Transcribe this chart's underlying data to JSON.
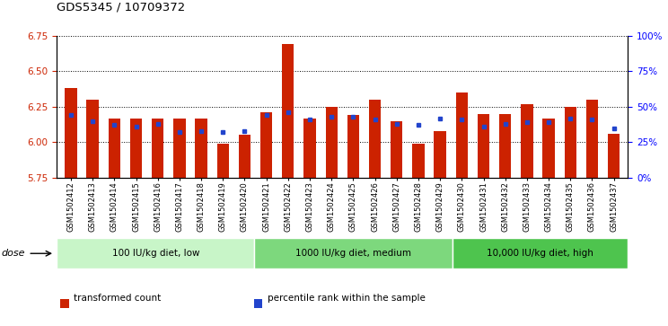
{
  "title": "GDS5345 / 10709372",
  "samples": [
    "GSM1502412",
    "GSM1502413",
    "GSM1502414",
    "GSM1502415",
    "GSM1502416",
    "GSM1502417",
    "GSM1502418",
    "GSM1502419",
    "GSM1502420",
    "GSM1502421",
    "GSM1502422",
    "GSM1502423",
    "GSM1502424",
    "GSM1502425",
    "GSM1502426",
    "GSM1502427",
    "GSM1502428",
    "GSM1502429",
    "GSM1502430",
    "GSM1502431",
    "GSM1502432",
    "GSM1502433",
    "GSM1502434",
    "GSM1502435",
    "GSM1502436",
    "GSM1502437"
  ],
  "red_values": [
    6.38,
    6.3,
    6.17,
    6.17,
    6.17,
    6.17,
    6.17,
    5.99,
    6.05,
    6.21,
    6.69,
    6.17,
    6.25,
    6.19,
    6.3,
    6.15,
    5.99,
    6.08,
    6.35,
    6.2,
    6.2,
    6.27,
    6.17,
    6.25,
    6.3,
    6.06
  ],
  "blue_values": [
    44,
    40,
    37,
    36,
    38,
    32,
    33,
    32,
    33,
    44,
    46,
    41,
    43,
    43,
    41,
    38,
    37,
    42,
    41,
    36,
    38,
    39,
    39,
    42,
    41,
    35
  ],
  "groups": [
    {
      "label": "100 IU/kg diet, low",
      "start": 0,
      "end": 9
    },
    {
      "label": "1000 IU/kg diet, medium",
      "start": 9,
      "end": 18
    },
    {
      "label": "10,000 IU/kg diet, high",
      "start": 18,
      "end": 26
    }
  ],
  "group_colors": [
    "#C8F5C8",
    "#7DD87D",
    "#4EC44E"
  ],
  "ylim_left": [
    5.75,
    6.75
  ],
  "ylim_right": [
    0,
    100
  ],
  "y_ticks_left": [
    5.75,
    6.0,
    6.25,
    6.5,
    6.75
  ],
  "y_ticks_right": [
    0,
    25,
    50,
    75,
    100
  ],
  "bar_color": "#CC2200",
  "dot_color": "#2244CC",
  "base": 5.75,
  "bg_color": "#E8E8E8",
  "legend_items": [
    {
      "color": "#CC2200",
      "label": "transformed count"
    },
    {
      "color": "#2244CC",
      "label": "percentile rank within the sample"
    }
  ]
}
